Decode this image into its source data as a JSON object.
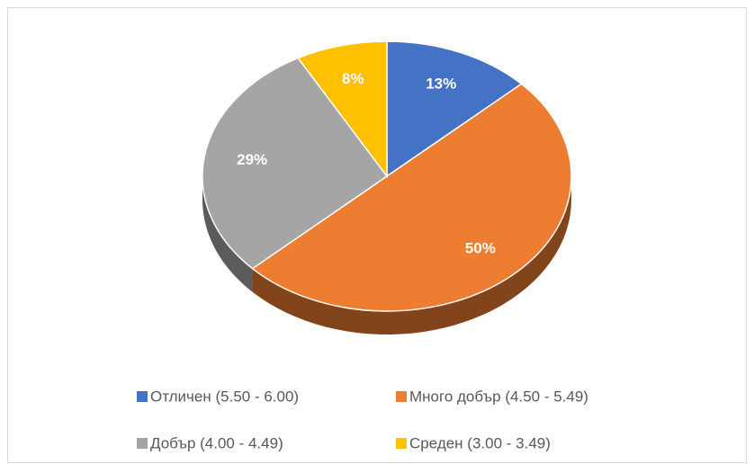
{
  "chart_data": {
    "type": "pie",
    "categories": [
      "Отличен (5.50 - 6.00)",
      "Много добър (4.50 - 5.49)",
      "Добър (4.00 - 4.49)",
      "Среден (3.00 - 3.49)"
    ],
    "values": [
      13,
      50,
      29,
      8
    ],
    "value_labels": [
      "13%",
      "50%",
      "29%",
      "8%"
    ],
    "colors": [
      "#4472c4",
      "#ed7d31",
      "#a5a5a5",
      "#ffc000"
    ],
    "legend": "bottom"
  }
}
